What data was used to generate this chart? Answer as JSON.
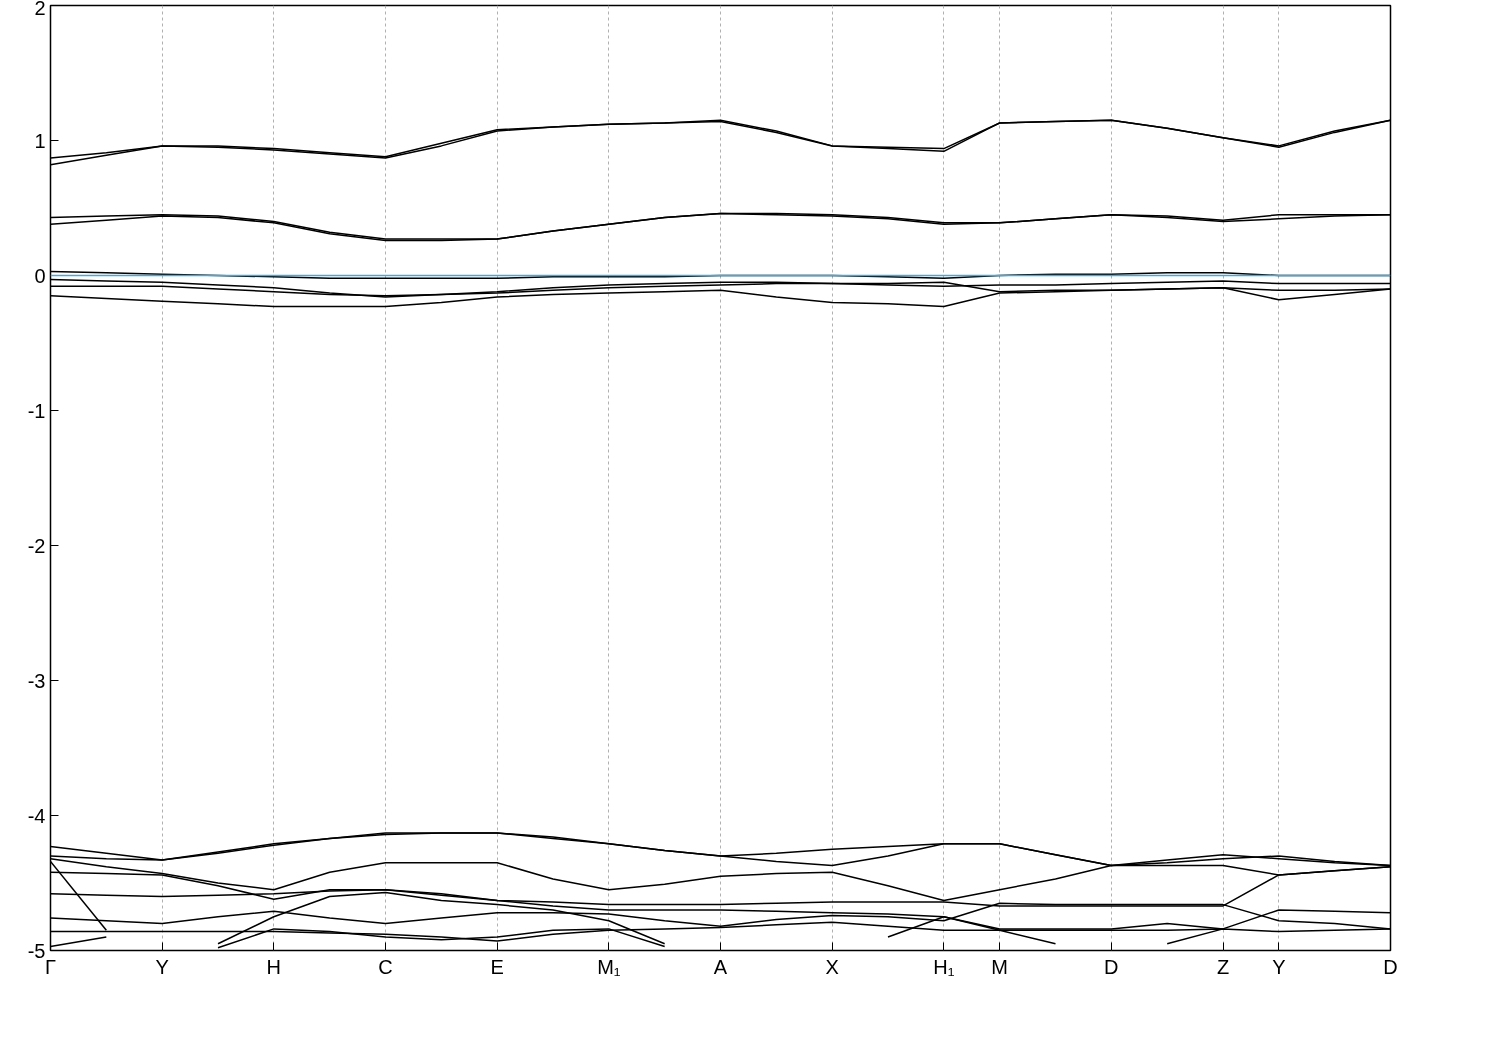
{
  "chart_data": {
    "type": "line",
    "categories": [
      "Γ",
      null,
      "Y",
      null,
      "H",
      null,
      "C",
      null,
      "E",
      null,
      "M₁",
      null,
      "A",
      null,
      "X",
      null,
      "H₁",
      "M",
      null,
      "D",
      null,
      "Z",
      "Y",
      null,
      "D"
    ],
    "ylim": [
      -5,
      2
    ],
    "yticks": [
      2,
      1,
      0,
      -1,
      -2,
      -3,
      -4,
      -5
    ],
    "grid": "x",
    "line_style": "solid",
    "ref_lines": [
      {
        "axis": "y",
        "value": 0,
        "color": "#3fa9e0"
      }
    ],
    "series": [
      {
        "color": "#000000",
        "values": [
          0.87,
          0.91,
          0.96,
          0.96,
          0.94,
          0.91,
          0.88,
          0.98,
          1.08,
          1.1,
          1.12,
          1.13,
          1.15,
          1.07,
          0.96,
          0.95,
          0.94,
          1.13,
          1.14,
          1.15,
          1.09,
          1.02,
          0.96,
          1.07,
          1.15
        ]
      },
      {
        "color": "#000000",
        "values": [
          0.82,
          0.89,
          0.96,
          0.95,
          0.93,
          0.9,
          0.87,
          0.96,
          1.07,
          1.1,
          1.12,
          1.13,
          1.14,
          1.06,
          0.96,
          0.94,
          0.92,
          1.13,
          1.14,
          1.15,
          1.09,
          1.02,
          0.95,
          1.06,
          1.15
        ]
      },
      {
        "color": "#000000",
        "values": [
          0.43,
          0.44,
          0.45,
          0.44,
          0.4,
          0.32,
          0.27,
          0.27,
          0.27,
          0.33,
          0.38,
          0.43,
          0.46,
          0.46,
          0.45,
          0.43,
          0.39,
          0.39,
          0.42,
          0.45,
          0.44,
          0.41,
          0.45,
          0.45,
          0.45
        ]
      },
      {
        "color": "#000000",
        "values": [
          0.38,
          0.41,
          0.44,
          0.43,
          0.39,
          0.31,
          0.26,
          0.26,
          0.27,
          0.33,
          0.38,
          0.43,
          0.46,
          0.45,
          0.44,
          0.42,
          0.38,
          0.39,
          0.42,
          0.45,
          0.43,
          0.4,
          0.42,
          0.44,
          0.45
        ]
      },
      {
        "color": "#000000",
        "values": [
          0.03,
          0.02,
          0.01,
          0.0,
          -0.01,
          -0.02,
          -0.02,
          -0.02,
          -0.02,
          -0.01,
          -0.01,
          -0.01,
          0.0,
          0.0,
          0.0,
          -0.01,
          -0.02,
          0.0,
          0.01,
          0.01,
          0.02,
          0.02,
          0.0,
          0.0,
          0.0
        ]
      },
      {
        "color": "#000000",
        "values": [
          -0.03,
          -0.04,
          -0.05,
          -0.07,
          -0.09,
          -0.13,
          -0.16,
          -0.14,
          -0.12,
          -0.09,
          -0.07,
          -0.06,
          -0.05,
          -0.05,
          -0.06,
          -0.07,
          -0.08,
          -0.07,
          -0.07,
          -0.06,
          -0.05,
          -0.04,
          -0.06,
          -0.06,
          -0.06
        ]
      },
      {
        "color": "#000000",
        "values": [
          -0.08,
          -0.08,
          -0.08,
          -0.1,
          -0.12,
          -0.14,
          -0.15,
          -0.14,
          -0.13,
          -0.11,
          -0.09,
          -0.08,
          -0.07,
          -0.06,
          -0.06,
          -0.06,
          -0.05,
          -0.12,
          -0.11,
          -0.11,
          -0.1,
          -0.09,
          -0.18,
          -0.14,
          -0.1
        ]
      },
      {
        "color": "#000000",
        "values": [
          -0.15,
          -0.17,
          -0.19,
          -0.21,
          -0.23,
          -0.23,
          -0.23,
          -0.2,
          -0.16,
          -0.14,
          -0.13,
          -0.12,
          -0.11,
          -0.16,
          -0.2,
          -0.21,
          -0.23,
          -0.13,
          -0.12,
          -0.11,
          -0.1,
          -0.09,
          -0.11,
          -0.11,
          -0.1
        ]
      },
      {
        "color": "#000000",
        "values": [
          -4.23,
          -4.28,
          -4.33,
          -4.27,
          -4.21,
          -4.17,
          -4.13,
          -4.13,
          -4.13,
          -4.17,
          -4.21,
          -4.26,
          -4.3,
          -4.34,
          -4.37,
          -4.3,
          -4.21,
          -4.21,
          -4.29,
          -4.37,
          -4.33,
          -4.29,
          -4.32,
          -4.35,
          -4.37
        ]
      },
      {
        "color": "#000000",
        "values": [
          -4.3,
          -4.32,
          -4.33,
          -4.28,
          -4.22,
          -4.17,
          -4.14,
          -4.13,
          -4.13,
          -4.16,
          -4.21,
          -4.26,
          -4.3,
          -4.28,
          -4.25,
          -4.23,
          -4.21,
          -4.21,
          -4.29,
          -4.37,
          -4.37,
          -4.37,
          -4.44,
          -4.41,
          -4.38
        ]
      },
      {
        "color": "#000000",
        "values": [
          -4.32,
          -4.38,
          -4.43,
          -4.5,
          -4.55,
          -4.42,
          -4.35,
          -4.35,
          -4.35,
          -4.47,
          -4.55,
          -4.51,
          -4.45,
          -4.43,
          -4.42,
          -4.52,
          -4.63,
          -4.55,
          -4.47,
          -4.37,
          -4.35,
          -4.32,
          -4.3,
          -4.34,
          -4.37
        ]
      },
      {
        "color": "#000000",
        "values": [
          -4.42,
          -4.43,
          -4.44,
          -4.52,
          -4.62,
          -4.55,
          -4.55,
          -4.59,
          -4.63,
          -4.64,
          -4.66,
          -4.66,
          -4.66,
          -4.65,
          -4.64,
          -4.64,
          -4.64,
          -4.67,
          -4.67,
          -4.67,
          -4.67,
          -4.67,
          -4.44,
          -4.41,
          -4.38
        ]
      },
      {
        "color": "#000000",
        "values": [
          -4.58,
          -4.59,
          -4.6,
          -4.59,
          -4.58,
          -4.56,
          -4.55,
          -4.58,
          -4.63,
          -4.67,
          -4.7,
          -4.7,
          -4.7,
          -4.71,
          -4.72,
          -4.73,
          -4.75,
          -4.84,
          -4.84,
          -4.84,
          -4.8,
          -4.84,
          -4.7,
          -4.71,
          -4.72
        ]
      },
      {
        "color": "#000000",
        "values": [
          -4.76,
          -4.78,
          -4.8,
          -4.75,
          -4.71,
          -4.76,
          -4.8,
          -4.76,
          -4.72,
          -4.72,
          -4.73,
          -4.78,
          -4.82,
          -4.77,
          -4.74,
          -4.75,
          -4.78,
          -4.65,
          -4.66,
          -4.66,
          -4.66,
          -4.66,
          -4.78,
          -4.8,
          -4.84
        ]
      },
      {
        "color": "#000000",
        "values": [
          -4.86,
          -4.86,
          -4.86,
          -4.86,
          -4.86,
          -4.87,
          -4.88,
          -4.9,
          -4.93,
          -4.88,
          -4.85,
          -4.84,
          -4.83,
          -4.81,
          -4.79,
          -4.82,
          -4.85,
          -4.85,
          -4.85,
          -4.85,
          -4.85,
          -4.84,
          -4.86,
          -4.85,
          -4.84
        ]
      },
      {
        "color": "#000000",
        "values": [
          -4.34,
          -4.85,
          null,
          null,
          null,
          null,
          null,
          null,
          null,
          null,
          null,
          null,
          null,
          null,
          null,
          null,
          null,
          null,
          null,
          null,
          null,
          null,
          null,
          null,
          null
        ]
      },
      {
        "color": "#000000",
        "values": [
          -4.97,
          -4.9,
          null,
          null,
          null,
          null,
          null,
          null,
          null,
          null,
          null,
          null,
          null,
          null,
          null,
          null,
          null,
          null,
          null,
          null,
          null,
          null,
          null,
          null,
          null
        ]
      },
      {
        "color": "#000000",
        "values": [
          null,
          null,
          null,
          -4.95,
          -4.75,
          -4.6,
          -4.57,
          -4.63,
          -4.66,
          -4.7,
          -4.78,
          -4.95,
          null,
          null,
          null,
          null,
          null,
          null,
          null,
          null,
          null,
          null,
          null,
          null,
          null
        ]
      },
      {
        "color": "#000000",
        "values": [
          null,
          null,
          null,
          -4.98,
          -4.84,
          -4.86,
          -4.9,
          -4.92,
          -4.9,
          -4.85,
          -4.84,
          -4.97,
          null,
          null,
          null,
          null,
          null,
          null,
          null,
          null,
          null,
          null,
          null,
          null,
          null
        ]
      },
      {
        "color": "#000000",
        "values": [
          null,
          null,
          null,
          null,
          null,
          null,
          null,
          null,
          null,
          null,
          null,
          null,
          null,
          null,
          null,
          -4.9,
          -4.75,
          -4.85,
          -4.95,
          null,
          null,
          null,
          null,
          null,
          null
        ]
      },
      {
        "color": "#000000",
        "values": [
          null,
          null,
          null,
          null,
          null,
          null,
          null,
          null,
          null,
          null,
          null,
          null,
          null,
          null,
          null,
          null,
          null,
          null,
          null,
          null,
          -4.95,
          -4.84,
          null,
          null,
          null
        ]
      }
    ]
  }
}
